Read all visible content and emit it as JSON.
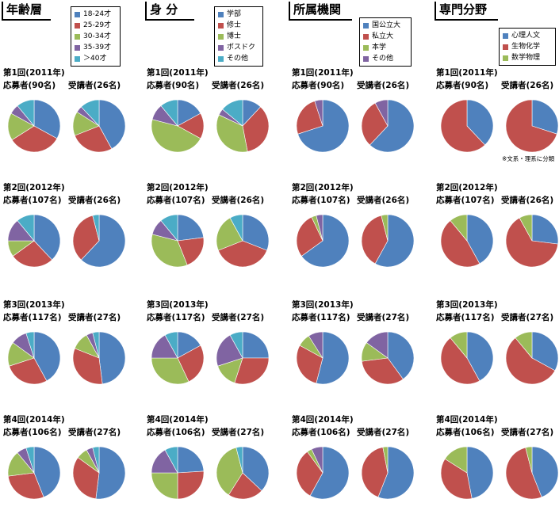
{
  "colors": [
    "#4f81bd",
    "#c0504d",
    "#9bbb59",
    "#8064a2",
    "#4bacc6"
  ],
  "columns": [
    {
      "title": "年齢層",
      "legend": [
        "18-24才",
        "25-29才",
        "30-34才",
        "35-39才",
        "＞40才"
      ]
    },
    {
      "title": "身 分",
      "legend": [
        "学部",
        "修士",
        "博士",
        "ポスドク",
        "その他"
      ]
    },
    {
      "title": "所属機関",
      "legend": [
        "国公立大",
        "私立大",
        "本学",
        "その他"
      ]
    },
    {
      "title": "専門分野",
      "legend": [
        "心理人文",
        "生物化学",
        "数学物理"
      ]
    }
  ],
  "sessions": [
    {
      "label": "第1回(2011年)",
      "applicants": "応募者(90名)",
      "participants": "受講者(26名)"
    },
    {
      "label": "第2回(2012年)",
      "applicants": "応募者(107名)",
      "participants": "受講者(26名)"
    },
    {
      "label": "第3回(2013年)",
      "applicants": "応募者(117名)",
      "participants": "受講者(27名)"
    },
    {
      "label": "第4回(2014年)",
      "applicants": "応募者(106名)",
      "participants": "受講者(27名)"
    }
  ],
  "note": "※文系・理系に分類",
  "chart_data": [
    {
      "type": "pie",
      "column": "年齢層",
      "session": "第1回(2011年)",
      "group": "応募者",
      "values": [
        33,
        33,
        17,
        6,
        11
      ]
    },
    {
      "type": "pie",
      "column": "年齢層",
      "session": "第1回(2011年)",
      "group": "受講者",
      "values": [
        42,
        27,
        15,
        4,
        12
      ]
    },
    {
      "type": "pie",
      "column": "身 分",
      "session": "第1回(2011年)",
      "group": "応募者",
      "values": [
        17,
        16,
        46,
        10,
        11
      ]
    },
    {
      "type": "pie",
      "column": "身 分",
      "session": "第1回(2011年)",
      "group": "受講者",
      "values": [
        12,
        35,
        35,
        4,
        14
      ]
    },
    {
      "type": "pie",
      "column": "所属機関",
      "session": "第1回(2011年)",
      "group": "応募者",
      "values": [
        70,
        25,
        0,
        5
      ]
    },
    {
      "type": "pie",
      "column": "所属機関",
      "session": "第1回(2011年)",
      "group": "受講者",
      "values": [
        62,
        30,
        0,
        8
      ]
    },
    {
      "type": "pie",
      "column": "専門分野",
      "session": "第1回(2011年)",
      "group": "応募者",
      "values": [
        38,
        62,
        0
      ]
    },
    {
      "type": "pie",
      "column": "専門分野",
      "session": "第1回(2011年)",
      "group": "受講者",
      "values": [
        30,
        70,
        0
      ]
    },
    {
      "type": "pie",
      "column": "年齢層",
      "session": "第2回(2012年)",
      "group": "応募者",
      "values": [
        38,
        27,
        10,
        14,
        11
      ]
    },
    {
      "type": "pie",
      "column": "年齢層",
      "session": "第2回(2012年)",
      "group": "受講者",
      "values": [
        62,
        34,
        0,
        0,
        4
      ]
    },
    {
      "type": "pie",
      "column": "身 分",
      "session": "第2回(2012年)",
      "group": "応募者",
      "values": [
        23,
        21,
        35,
        10,
        11
      ]
    },
    {
      "type": "pie",
      "column": "身 分",
      "session": "第2回(2012年)",
      "group": "受講者",
      "values": [
        31,
        38,
        23,
        0,
        8
      ]
    },
    {
      "type": "pie",
      "column": "所属機関",
      "session": "第2回(2012年)",
      "group": "応募者",
      "values": [
        65,
        28,
        3,
        4
      ]
    },
    {
      "type": "pie",
      "column": "所属機関",
      "session": "第2回(2012年)",
      "group": "受講者",
      "values": [
        58,
        38,
        4,
        0
      ]
    },
    {
      "type": "pie",
      "column": "専門分野",
      "session": "第2回(2012年)",
      "group": "応募者",
      "values": [
        42,
        47,
        11
      ]
    },
    {
      "type": "pie",
      "column": "専門分野",
      "session": "第2回(2012年)",
      "group": "受講者",
      "values": [
        27,
        65,
        8
      ]
    },
    {
      "type": "pie",
      "column": "年齢層",
      "session": "第3回(2013年)",
      "group": "応募者",
      "values": [
        42,
        28,
        15,
        10,
        5
      ]
    },
    {
      "type": "pie",
      "column": "年齢層",
      "session": "第3回(2013年)",
      "group": "受講者",
      "values": [
        48,
        33,
        11,
        4,
        4
      ]
    },
    {
      "type": "pie",
      "column": "身 分",
      "session": "第3回(2013年)",
      "group": "応募者",
      "values": [
        17,
        26,
        32,
        17,
        8
      ]
    },
    {
      "type": "pie",
      "column": "身 分",
      "session": "第3回(2013年)",
      "group": "受講者",
      "values": [
        25,
        30,
        15,
        22,
        8
      ]
    },
    {
      "type": "pie",
      "column": "所属機関",
      "session": "第3回(2013年)",
      "group": "応募者",
      "values": [
        54,
        29,
        8,
        9
      ]
    },
    {
      "type": "pie",
      "column": "所属機関",
      "session": "第3回(2013年)",
      "group": "受講者",
      "values": [
        40,
        33,
        12,
        15
      ]
    },
    {
      "type": "pie",
      "column": "専門分野",
      "session": "第3回(2013年)",
      "group": "応募者",
      "values": [
        42,
        47,
        11
      ]
    },
    {
      "type": "pie",
      "column": "専門分野",
      "session": "第3回(2013年)",
      "group": "受講者",
      "values": [
        33,
        56,
        11
      ]
    },
    {
      "type": "pie",
      "column": "年齢層",
      "session": "第4回(2014年)",
      "group": "応募者",
      "values": [
        44,
        29,
        16,
        6,
        5
      ]
    },
    {
      "type": "pie",
      "column": "年齢層",
      "session": "第4回(2014年)",
      "group": "受講者",
      "values": [
        52,
        33,
        7,
        4,
        4
      ]
    },
    {
      "type": "pie",
      "column": "身 分",
      "session": "第4回(2014年)",
      "group": "応募者",
      "values": [
        24,
        26,
        25,
        17,
        8
      ]
    },
    {
      "type": "pie",
      "column": "身 分",
      "session": "第4回(2014年)",
      "group": "受講者",
      "values": [
        37,
        22,
        37,
        0,
        4
      ]
    },
    {
      "type": "pie",
      "column": "所属機関",
      "session": "第4回(2014年)",
      "group": "応募者",
      "values": [
        58,
        32,
        3,
        7
      ]
    },
    {
      "type": "pie",
      "column": "所属機関",
      "session": "第4回(2014年)",
      "group": "受講者",
      "values": [
        56,
        41,
        3,
        0
      ]
    },
    {
      "type": "pie",
      "column": "専門分野",
      "session": "第4回(2014年)",
      "group": "応募者",
      "values": [
        47,
        37,
        16
      ]
    },
    {
      "type": "pie",
      "column": "専門分野",
      "session": "第4回(2014年)",
      "group": "受講者",
      "values": [
        44,
        52,
        4
      ]
    }
  ]
}
